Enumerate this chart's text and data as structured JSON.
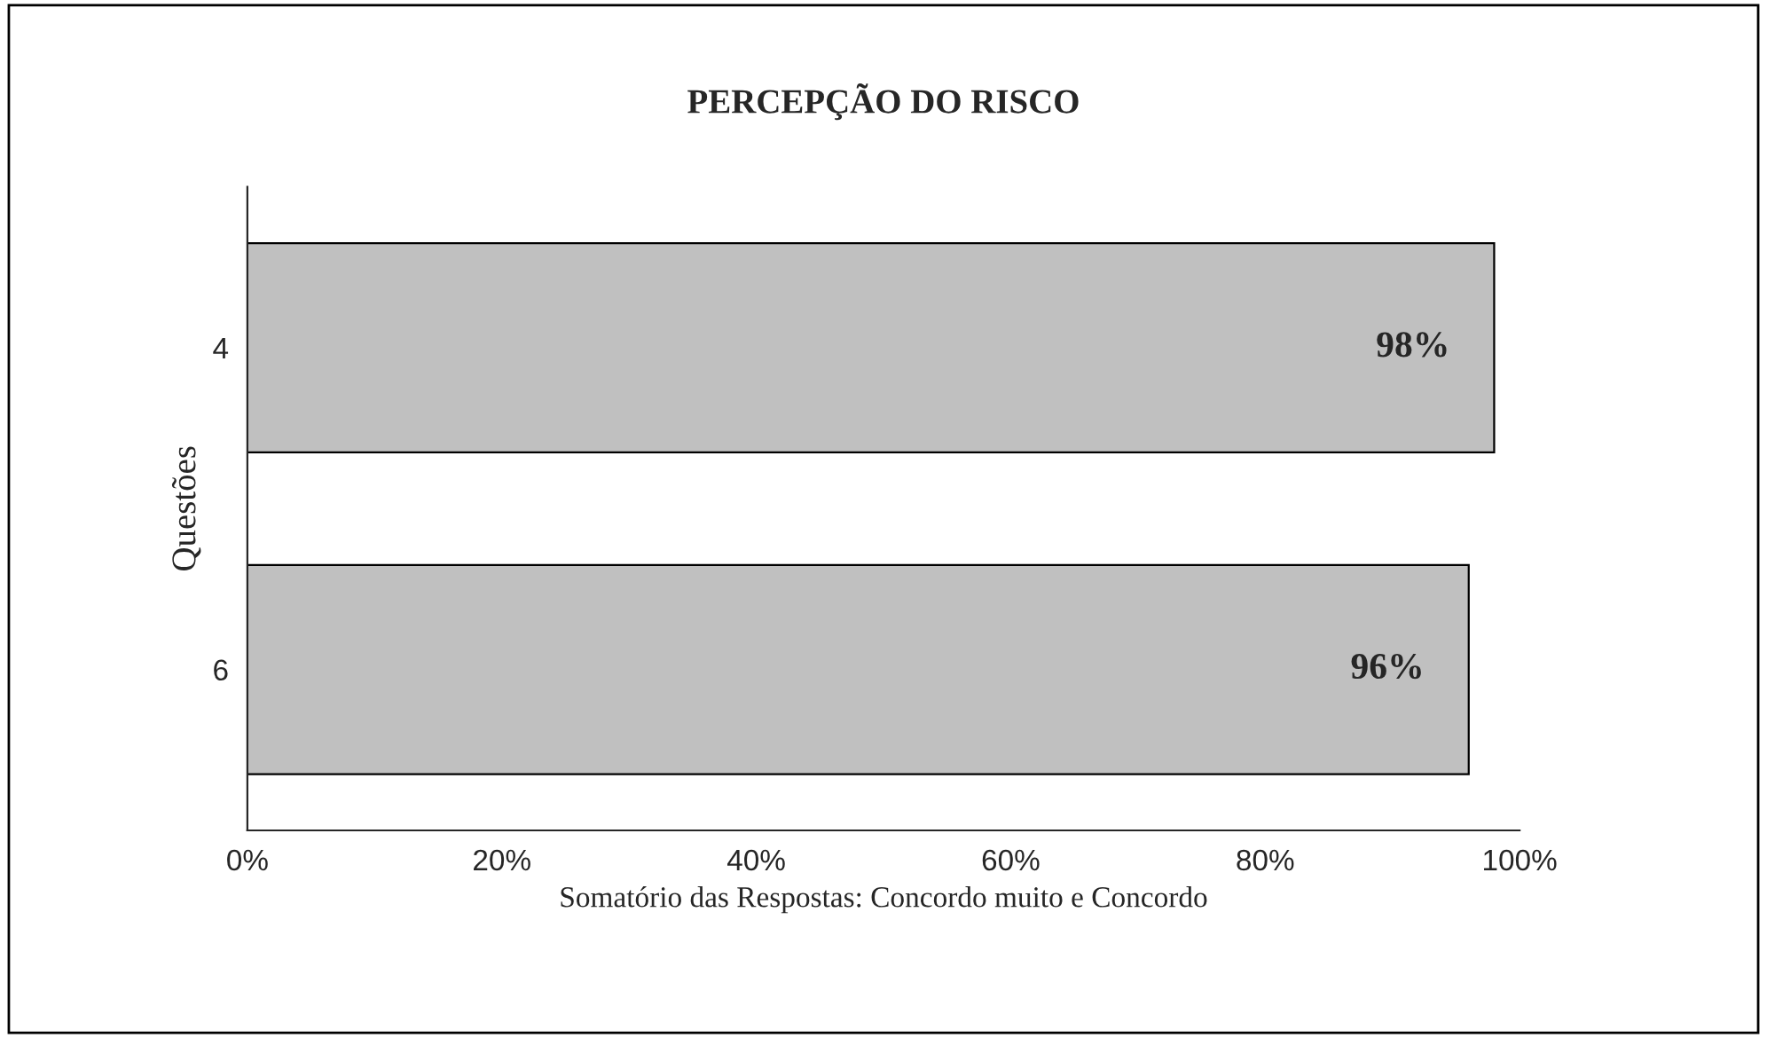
{
  "chart_data": {
    "type": "bar",
    "orientation": "horizontal",
    "title": "PERCEPÇÃO DO RISCO",
    "xlabel": "Somatório das Respostas: Concordo muito e Concordo",
    "ylabel": "Questões",
    "categories": [
      "4",
      "6"
    ],
    "values": [
      98,
      96
    ],
    "value_labels": [
      "98%",
      "96%"
    ],
    "color": "#c0c0c0",
    "xlim": [
      0,
      100
    ],
    "xticks": [
      {
        "value": 0,
        "label": "0%"
      },
      {
        "value": 20,
        "label": "20%"
      },
      {
        "value": 40,
        "label": "40%"
      },
      {
        "value": 60,
        "label": "60%"
      },
      {
        "value": 80,
        "label": "80%"
      },
      {
        "value": 100,
        "label": "100%"
      }
    ],
    "grid": false,
    "legend": false
  }
}
